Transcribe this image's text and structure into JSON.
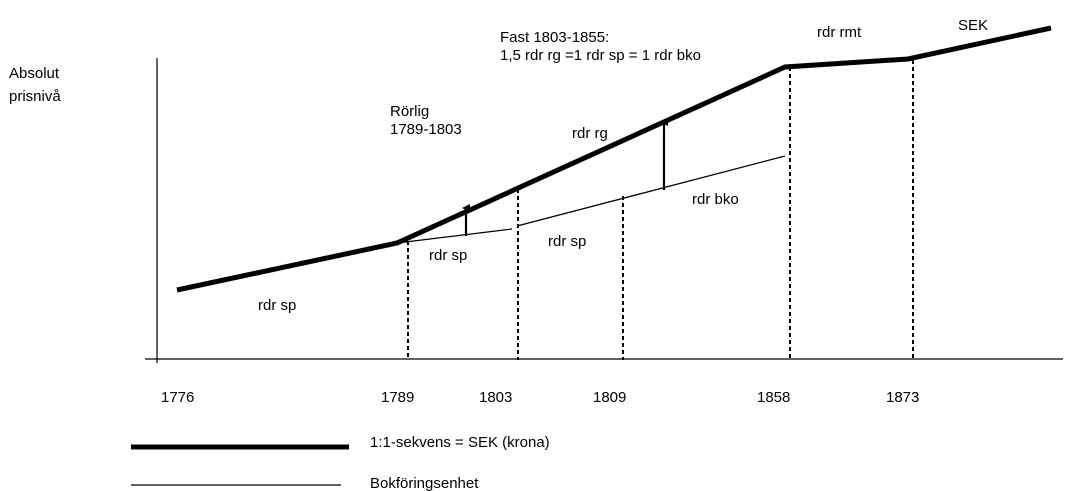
{
  "y_axis_label": [
    "Absolut",
    "prisnivå"
  ],
  "x_ticks": [
    "1776",
    "1789",
    "1803",
    "1809",
    "1858",
    "1873"
  ],
  "annotations": {
    "fast_title": "Fast 1803-1855:",
    "fast_relation": "1,5 rdr rg =1 rdr sp = 1 rdr bko",
    "rorlig": "Rörlig",
    "rorlig_period": "1789-1803"
  },
  "segment_labels": {
    "rdr_sp_1": "rdr sp",
    "rdr_sp_2": "rdr sp",
    "rdr_sp_3": "rdr sp",
    "rdr_rg": "rdr rg",
    "rdr_bko": "rdr bko",
    "rdr_rmt": "rdr rmt",
    "sek": "SEK"
  },
  "legend": {
    "thick_label": "1:1-sekvens = SEK (krona)",
    "thin_label": "Bokföringsenhet"
  },
  "colors": {
    "line": "#000000",
    "background": "#ffffff"
  }
}
